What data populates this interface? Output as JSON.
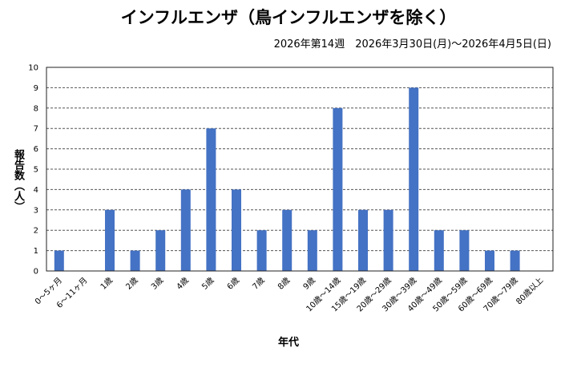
{
  "chart_data": {
    "type": "bar",
    "title": "インフルエンザ（鳥インフルエンザを除く）",
    "subtitle": "2026年第14週　2026年3月30日(月)～2026年4月5日(日)",
    "xlabel": "年代",
    "ylabel": "報告数（人）",
    "ylim": [
      0,
      10
    ],
    "yticks": [
      0,
      1,
      2,
      3,
      4,
      5,
      6,
      7,
      8,
      9,
      10
    ],
    "grid": true,
    "bar_color": "#4472c4",
    "categories": [
      "0～5ヶ月",
      "6～11ヶ月",
      "1歳",
      "2歳",
      "3歳",
      "4歳",
      "5歳",
      "6歳",
      "7歳",
      "8歳",
      "9歳",
      "10歳～14歳",
      "15歳～19歳",
      "20歳～29歳",
      "30歳～39歳",
      "40歳～49歳",
      "50歳～59歳",
      "60歳～69歳",
      "70歳～79歳",
      "80歳以上"
    ],
    "values": [
      1,
      0,
      3,
      1,
      2,
      4,
      7,
      4,
      2,
      3,
      2,
      8,
      3,
      3,
      9,
      2,
      2,
      1,
      1,
      0
    ]
  }
}
